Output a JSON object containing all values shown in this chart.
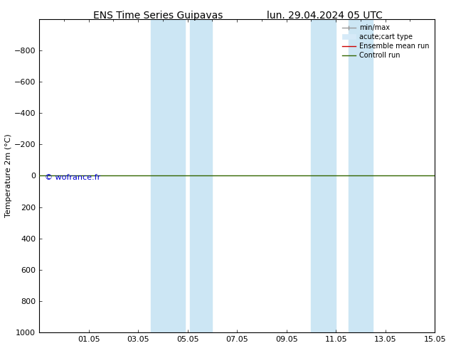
{
  "title_left": "ENS Time Series Guipavas",
  "title_right": "lun. 29.04.2024 05 UTC",
  "ylabel": "Temperature 2m (°C)",
  "ylim_bottom": 1000,
  "ylim_top": -1000,
  "yticks": [
    -800,
    -600,
    -400,
    -200,
    0,
    200,
    400,
    600,
    800,
    1000
  ],
  "xtick_labels": [
    "01.05",
    "03.05",
    "05.05",
    "07.05",
    "09.05",
    "11.05",
    "13.05",
    "15.05"
  ],
  "xtick_positions": [
    2,
    4,
    6,
    8,
    10,
    12,
    14,
    16
  ],
  "xlim_left": 0,
  "xlim_right": 16,
  "shaded_bands": [
    {
      "xmin": 4.5,
      "xmax": 5.5
    },
    {
      "xmin": 5.5,
      "xmax": 7.0
    },
    {
      "xmin": 11.0,
      "xmax": 12.0
    },
    {
      "xmin": 12.0,
      "xmax": 13.5
    }
  ],
  "band_colors": [
    "#cde4f5",
    "#d6eaf8",
    "#cde4f5",
    "#d6eaf8"
  ],
  "hline_color_green": "#336600",
  "watermark": "© wofrance.fr",
  "watermark_color": "#0000cc",
  "legend_labels": [
    "min/max",
    "acute;cart type",
    "Ensemble mean run",
    "Controll run"
  ],
  "legend_colors": [
    "#999999",
    "#d6eaf8",
    "#cc0000",
    "#336600"
  ],
  "bg_color": "#ffffff",
  "font_size_title": 10,
  "font_size_axis": 8,
  "font_size_legend": 7,
  "font_size_watermark": 8
}
